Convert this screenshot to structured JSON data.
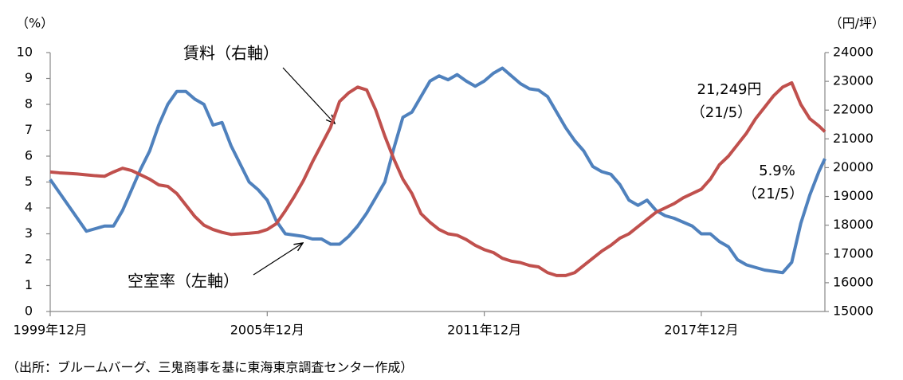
{
  "chart_data": {
    "type": "line",
    "y_unit": "（%）",
    "y2_unit": "（円/坪）",
    "source": "（出所：ブルームバーグ、三鬼商事を基に東海東京調査センター作成）",
    "x": [
      "1999-12",
      "2000-03",
      "2000-06",
      "2000-09",
      "2000-12",
      "2001-03",
      "2001-06",
      "2001-09",
      "2001-12",
      "2002-03",
      "2002-06",
      "2002-09",
      "2002-12",
      "2003-03",
      "2003-06",
      "2003-09",
      "2003-12",
      "2004-03",
      "2004-06",
      "2004-09",
      "2004-12",
      "2005-03",
      "2005-06",
      "2005-09",
      "2005-12",
      "2006-03",
      "2006-06",
      "2006-09",
      "2006-12",
      "2007-03",
      "2007-06",
      "2007-09",
      "2007-12",
      "2008-03",
      "2008-06",
      "2008-09",
      "2008-12",
      "2009-03",
      "2009-06",
      "2009-09",
      "2009-12",
      "2010-03",
      "2010-06",
      "2010-09",
      "2010-12",
      "2011-03",
      "2011-06",
      "2011-09",
      "2011-12",
      "2012-03",
      "2012-06",
      "2012-09",
      "2012-12",
      "2013-03",
      "2013-06",
      "2013-09",
      "2013-12",
      "2014-03",
      "2014-06",
      "2014-09",
      "2014-12",
      "2015-03",
      "2015-06",
      "2015-09",
      "2015-12",
      "2016-03",
      "2016-06",
      "2016-09",
      "2016-12",
      "2017-03",
      "2017-06",
      "2017-09",
      "2017-12",
      "2018-03",
      "2018-06",
      "2018-09",
      "2018-12",
      "2019-03",
      "2019-06",
      "2019-09",
      "2019-12",
      "2020-03",
      "2020-06",
      "2020-09",
      "2020-12",
      "2021-03",
      "2021-05"
    ],
    "xlim": [
      "1999-12",
      "2021-05"
    ],
    "xticks": [
      {
        "value": "1999-12",
        "label": "1999年12月"
      },
      {
        "value": "2005-12",
        "label": "2005年12月"
      },
      {
        "value": "2011-12",
        "label": "2011年12月"
      },
      {
        "value": "2017-12",
        "label": "2017年12月"
      }
    ],
    "ylim": [
      0,
      10
    ],
    "yticks": [
      0,
      1,
      2,
      3,
      4,
      5,
      6,
      7,
      8,
      9,
      10
    ],
    "y2lim": [
      15000,
      24000
    ],
    "y2ticks": [
      15000,
      16000,
      17000,
      18000,
      19000,
      20000,
      21000,
      22000,
      23000,
      24000
    ],
    "series": [
      {
        "name": "空室率（左軸）",
        "color": "#4f81bd",
        "values": [
          5.1,
          4.6,
          4.1,
          3.6,
          3.1,
          3.2,
          3.3,
          3.3,
          3.9,
          4.7,
          5.5,
          6.2,
          7.2,
          8.0,
          8.5,
          8.5,
          8.2,
          8.0,
          7.2,
          7.3,
          6.4,
          5.7,
          5.0,
          4.7,
          4.3,
          3.5,
          3.0,
          2.95,
          2.9,
          2.8,
          2.8,
          2.6,
          2.6,
          2.9,
          3.3,
          3.8,
          4.4,
          5.0,
          6.3,
          7.5,
          7.7,
          8.3,
          8.9,
          9.1,
          8.95,
          9.15,
          8.9,
          8.7,
          8.9,
          9.2,
          9.4,
          9.1,
          8.8,
          8.6,
          8.55,
          8.3,
          7.7,
          7.1,
          6.6,
          6.2,
          5.6,
          5.4,
          5.3,
          4.9,
          4.3,
          4.1,
          4.3,
          3.9,
          3.7,
          3.6,
          3.45,
          3.3,
          3.0,
          3.0,
          2.7,
          2.5,
          2.0,
          1.8,
          1.7,
          1.6,
          1.55,
          1.5,
          1.9,
          3.4,
          4.5,
          5.4,
          5.9
        ]
      },
      {
        "name": "賃料（右軸）",
        "color": "#c0504d",
        "axis": "y2",
        "values": [
          19850,
          19820,
          19800,
          19780,
          19750,
          19720,
          19700,
          19850,
          19980,
          19900,
          19750,
          19600,
          19400,
          19350,
          19100,
          18700,
          18300,
          18000,
          17850,
          17750,
          17680,
          17700,
          17720,
          17750,
          17850,
          18050,
          18500,
          19000,
          19550,
          20200,
          20800,
          21400,
          22300,
          22600,
          22800,
          22700,
          22000,
          21100,
          20300,
          19600,
          19100,
          18400,
          18100,
          17850,
          17700,
          17650,
          17500,
          17300,
          17150,
          17050,
          16850,
          16750,
          16700,
          16600,
          16550,
          16350,
          16250,
          16250,
          16350,
          16600,
          16850,
          17100,
          17300,
          17550,
          17700,
          17950,
          18200,
          18450,
          18600,
          18750,
          18950,
          19100,
          19250,
          19600,
          20100,
          20400,
          20800,
          21200,
          21700,
          22100,
          22500,
          22800,
          22950,
          22200,
          21700,
          21450,
          21249
        ]
      }
    ],
    "annotations": [
      "21,249円",
      "（21/5）",
      "5.9%",
      "（21/5）"
    ]
  }
}
